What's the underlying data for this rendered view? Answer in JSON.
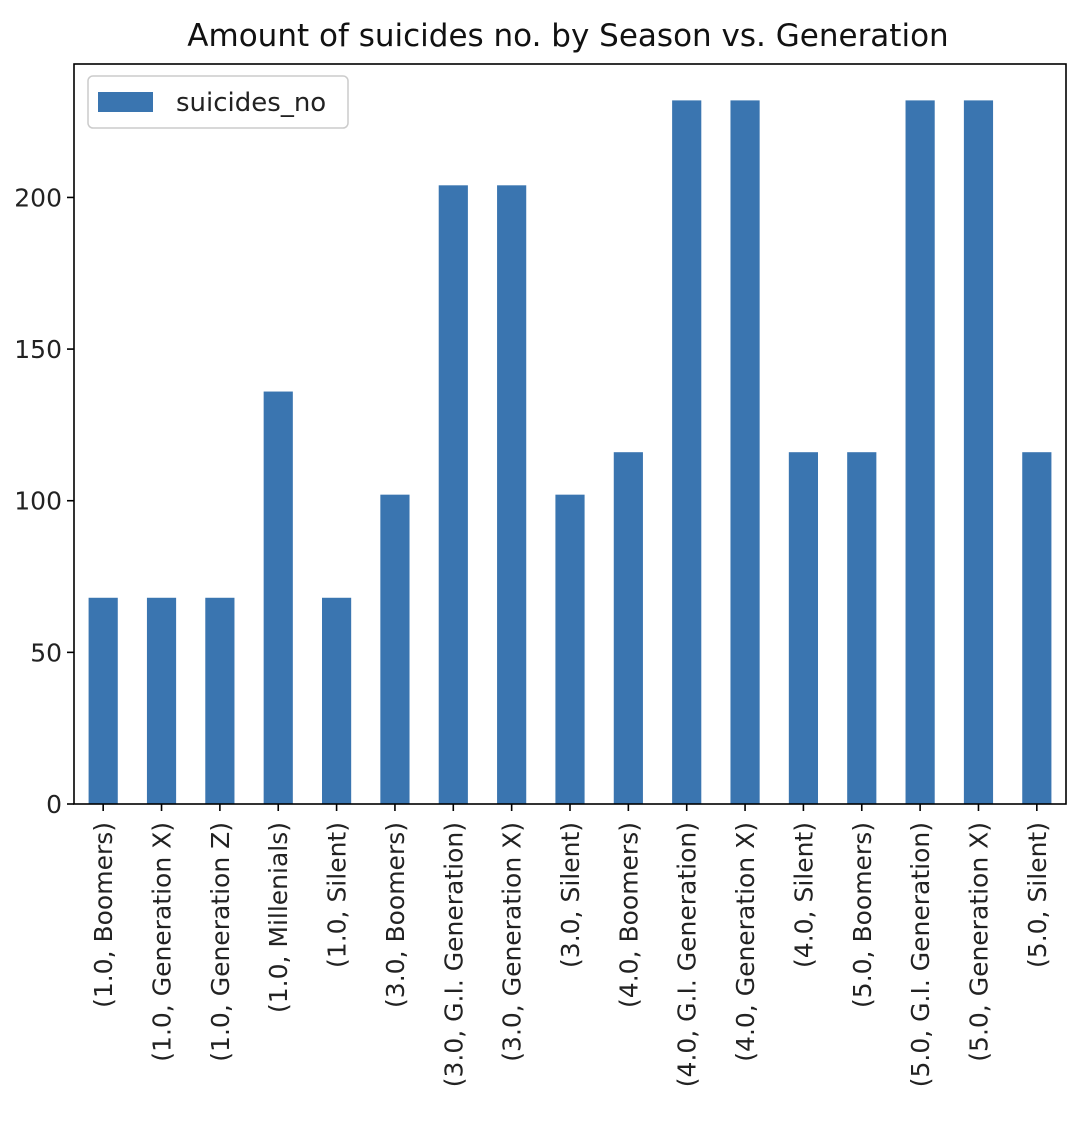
{
  "chart_data": {
    "type": "bar",
    "title": "Amount of suicides no. by Season vs. Generation",
    "xlabel": "",
    "ylabel": "",
    "ylim": [
      0,
      244
    ],
    "yticks": [
      0,
      50,
      100,
      150,
      200
    ],
    "grid": false,
    "legend": {
      "placement": "top-left",
      "entries": [
        "suicides_no"
      ]
    },
    "categories": [
      "(1.0, Boomers)",
      "(1.0, Generation X)",
      "(1.0, Generation Z)",
      "(1.0, Millenials)",
      "(1.0, Silent)",
      "(3.0, Boomers)",
      "(3.0, G.I. Generation)",
      "(3.0, Generation X)",
      "(3.0, Silent)",
      "(4.0, Boomers)",
      "(4.0, G.I. Generation)",
      "(4.0, Generation X)",
      "(4.0, Silent)",
      "(5.0, Boomers)",
      "(5.0, G.I. Generation)",
      "(5.0, Generation X)",
      "(5.0, Silent)"
    ],
    "series": [
      {
        "name": "suicides_no",
        "color": "#3a75b0",
        "values": [
          68,
          68,
          68,
          136,
          68,
          102,
          204,
          204,
          102,
          116,
          232,
          232,
          116,
          116,
          232,
          232,
          116
        ]
      }
    ]
  }
}
